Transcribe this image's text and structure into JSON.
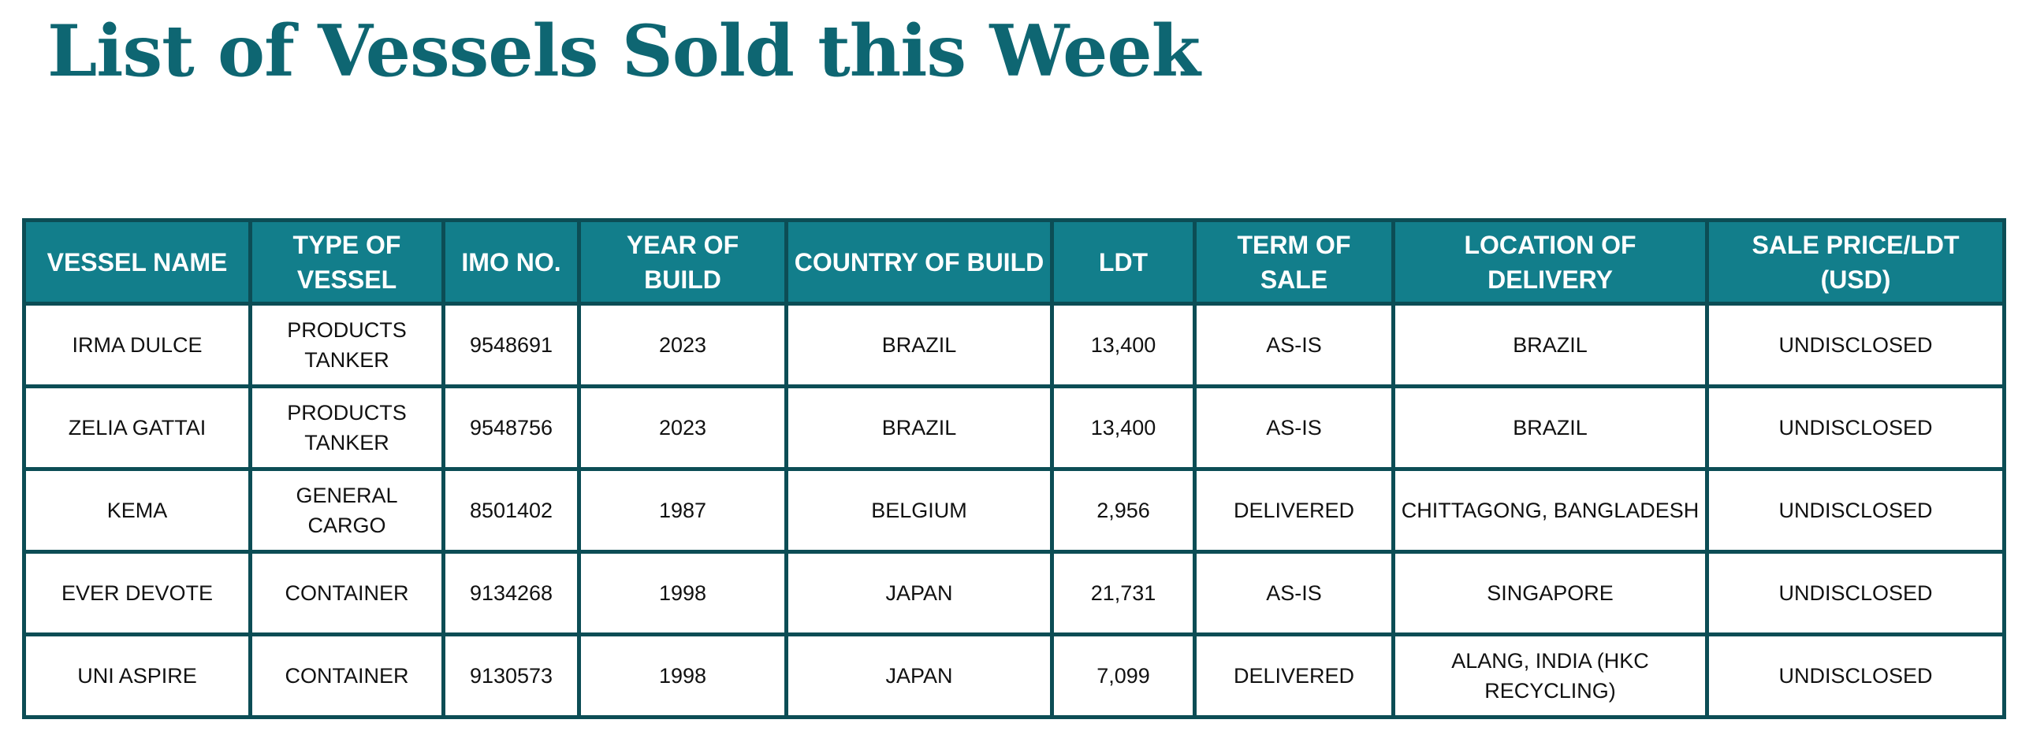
{
  "title": "List of Vessels Sold this Week",
  "colors": {
    "title": "#0e6672",
    "header_bg": "#127e8b",
    "border": "#0c4d55"
  },
  "table": {
    "columns": [
      "VESSEL NAME",
      "TYPE OF VESSEL",
      "IMO NO.",
      "YEAR OF BUILD",
      "COUNTRY OF BUILD",
      "LDT",
      "TERM OF SALE",
      "LOCATION OF DELIVERY",
      "SALE PRICE/LDT (USD)"
    ],
    "rows": [
      [
        "IRMA DULCE",
        "PRODUCTS TANKER",
        "9548691",
        "2023",
        "BRAZIL",
        "13,400",
        "AS-IS",
        "BRAZIL",
        "UNDISCLOSED"
      ],
      [
        "ZELIA GATTAI",
        "PRODUCTS TANKER",
        "9548756",
        "2023",
        "BRAZIL",
        "13,400",
        "AS-IS",
        "BRAZIL",
        "UNDISCLOSED"
      ],
      [
        "KEMA",
        "GENERAL CARGO",
        "8501402",
        "1987",
        "BELGIUM",
        "2,956",
        "DELIVERED",
        "CHITTAGONG, BANGLADESH",
        "UNDISCLOSED"
      ],
      [
        "EVER DEVOTE",
        "CONTAINER",
        "9134268",
        "1998",
        "JAPAN",
        "21,731",
        "AS-IS",
        "SINGAPORE",
        "UNDISCLOSED"
      ],
      [
        "UNI ASPIRE",
        "CONTAINER",
        "9130573",
        "1998",
        "JAPAN",
        "7,099",
        "DELIVERED",
        "ALANG, INDIA (HKC RECYCLING)",
        "UNDISCLOSED"
      ]
    ]
  }
}
